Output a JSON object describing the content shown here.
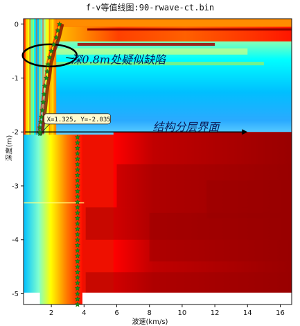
{
  "chart_data": {
    "type": "heatmap",
    "title": "f-v等值线图:90-rwave-ct.bin",
    "xlabel": "波速(km/s)",
    "ylabel": "深度(m)",
    "xlim": [
      0.3,
      16.7
    ],
    "ylim": [
      -5.2,
      0.1
    ],
    "x_ticks": [
      2,
      4,
      6,
      8,
      10,
      12,
      14,
      16
    ],
    "y_ticks": [
      0,
      -1,
      -2,
      -3,
      -4,
      -5
    ],
    "grid": false,
    "colormap": [
      "#00007f",
      "#0000ff",
      "#00bfff",
      "#7fffcf",
      "#ffff00",
      "#ff7f00",
      "#ff0000",
      "#7f0000"
    ],
    "series": [
      {
        "marker": "star",
        "color": "#1a8c1a",
        "x": [
          2.5,
          2.4,
          2.3,
          2.15,
          2.0,
          1.9,
          1.8,
          1.75,
          1.7,
          1.6,
          1.55,
          1.5,
          1.45,
          1.4,
          1.35,
          1.3,
          1.3,
          1.3
        ],
        "y": [
          0.0,
          -0.12,
          -0.25,
          -0.38,
          -0.5,
          -0.62,
          -0.75,
          -0.88,
          -1.0,
          -1.15,
          -1.3,
          -1.45,
          -1.6,
          -1.72,
          -1.82,
          -1.92,
          -2.0,
          -2.03
        ]
      },
      {
        "marker": "star",
        "color": "#1a8c1a",
        "x": [
          3.6,
          3.6,
          3.6,
          3.6,
          3.6,
          3.6,
          3.6,
          3.6,
          3.6,
          3.6,
          3.6,
          3.6,
          3.6,
          3.6,
          3.6,
          3.6,
          3.6,
          3.6,
          3.6,
          3.6,
          3.6,
          3.6,
          3.6,
          3.6,
          3.6,
          3.6,
          3.6,
          3.6,
          3.6,
          3.6,
          3.6,
          3.6
        ],
        "y": [
          -2.1,
          -2.2,
          -2.3,
          -2.4,
          -2.5,
          -2.6,
          -2.7,
          -2.8,
          -2.9,
          -3.0,
          -3.1,
          -3.2,
          -3.3,
          -3.4,
          -3.5,
          -3.6,
          -3.7,
          -3.8,
          -3.9,
          -4.0,
          -4.1,
          -4.2,
          -4.3,
          -4.4,
          -4.5,
          -4.6,
          -4.7,
          -4.8,
          -4.9,
          -5.0,
          -5.1,
          -5.2
        ]
      }
    ],
    "annotations": [
      {
        "text": "深0.8m处疑似缺陷",
        "x": 3.2,
        "y": -0.65,
        "color": "#0a1a55"
      },
      {
        "text": "结构分层界面",
        "x": 8.2,
        "y": -1.9,
        "color": "#0a1a55"
      }
    ],
    "data_tip": {
      "text": "X=1.325, Y=-2.035",
      "x": 1.325,
      "y": -2.035
    },
    "ellipse_marker": {
      "cx": 1.9,
      "cy": -0.58
    },
    "arrow_line": {
      "x0": 0.4,
      "x1": 14.0,
      "y": -2.0
    }
  }
}
